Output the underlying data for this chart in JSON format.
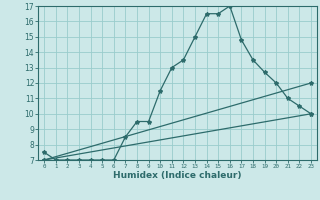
{
  "xlabel": "Humidex (Indice chaleur)",
  "ylabel": "",
  "background_color": "#cce8e8",
  "grid_color": "#99cccc",
  "line_color": "#2d6b6b",
  "xlim": [
    -0.5,
    23.5
  ],
  "ylim": [
    7,
    17
  ],
  "xticks": [
    0,
    1,
    2,
    3,
    4,
    5,
    6,
    7,
    8,
    9,
    10,
    11,
    12,
    13,
    14,
    15,
    16,
    17,
    18,
    19,
    20,
    21,
    22,
    23
  ],
  "yticks": [
    7,
    8,
    9,
    10,
    11,
    12,
    13,
    14,
    15,
    16,
    17
  ],
  "line1_x": [
    0,
    1,
    2,
    3,
    4,
    5,
    6,
    7,
    8,
    9,
    10,
    11,
    12,
    13,
    14,
    15,
    16,
    17,
    18,
    19,
    20,
    21,
    22,
    23
  ],
  "line1_y": [
    7.5,
    7.0,
    7.0,
    7.0,
    7.0,
    7.0,
    7.0,
    8.5,
    9.5,
    9.5,
    11.5,
    13.0,
    13.5,
    15.0,
    16.5,
    16.5,
    17.0,
    14.8,
    13.5,
    12.7,
    12.0,
    11.0,
    10.5,
    10.0
  ],
  "line2_x": [
    0,
    23
  ],
  "line2_y": [
    7.0,
    12.0
  ],
  "line3_x": [
    0,
    23
  ],
  "line3_y": [
    7.0,
    10.0
  ]
}
